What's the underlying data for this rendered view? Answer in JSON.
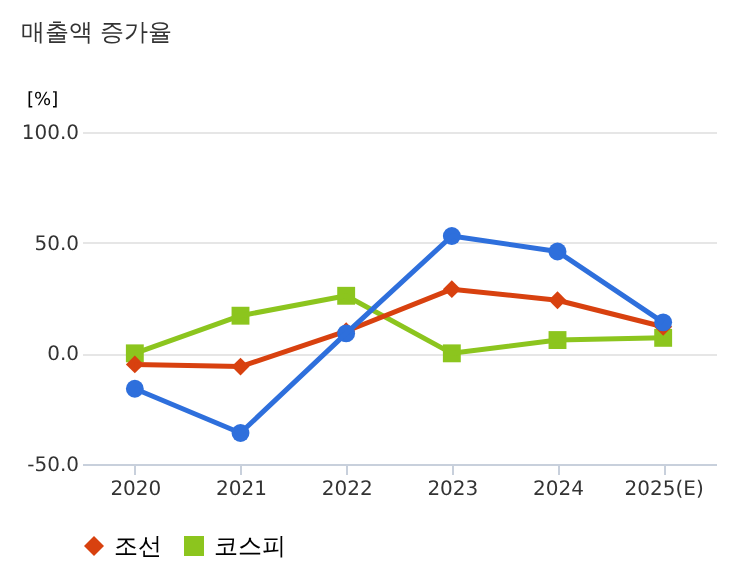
{
  "chart_data": {
    "type": "line",
    "title": "매출액 증가율",
    "ylabel": "[%]",
    "categories": [
      "2020",
      "2021",
      "2022",
      "2023",
      "2024",
      "2025(E)"
    ],
    "series": [
      {
        "color": "#2e6fdc",
        "marker": "circle",
        "values": [
          -16,
          -36,
          9,
          53,
          46,
          14
        ]
      },
      {
        "name": "조선",
        "color": "#d8410f",
        "marker": "diamond",
        "values": [
          -5,
          -6,
          10,
          29,
          24,
          12
        ]
      },
      {
        "name": "코스피",
        "color": "#8cc51e",
        "marker": "square",
        "values": [
          0,
          17,
          26,
          0,
          6,
          7
        ]
      }
    ],
    "ylim": [
      -50,
      100
    ],
    "yticks": [
      {
        "value": -50,
        "label": "-50.0"
      },
      {
        "value": 0,
        "label": "0.0"
      },
      {
        "value": 50,
        "label": "50.0"
      },
      {
        "value": 100,
        "label": "100.0"
      }
    ],
    "grid": "y",
    "legend": "bottom",
    "line_style": "solid"
  }
}
